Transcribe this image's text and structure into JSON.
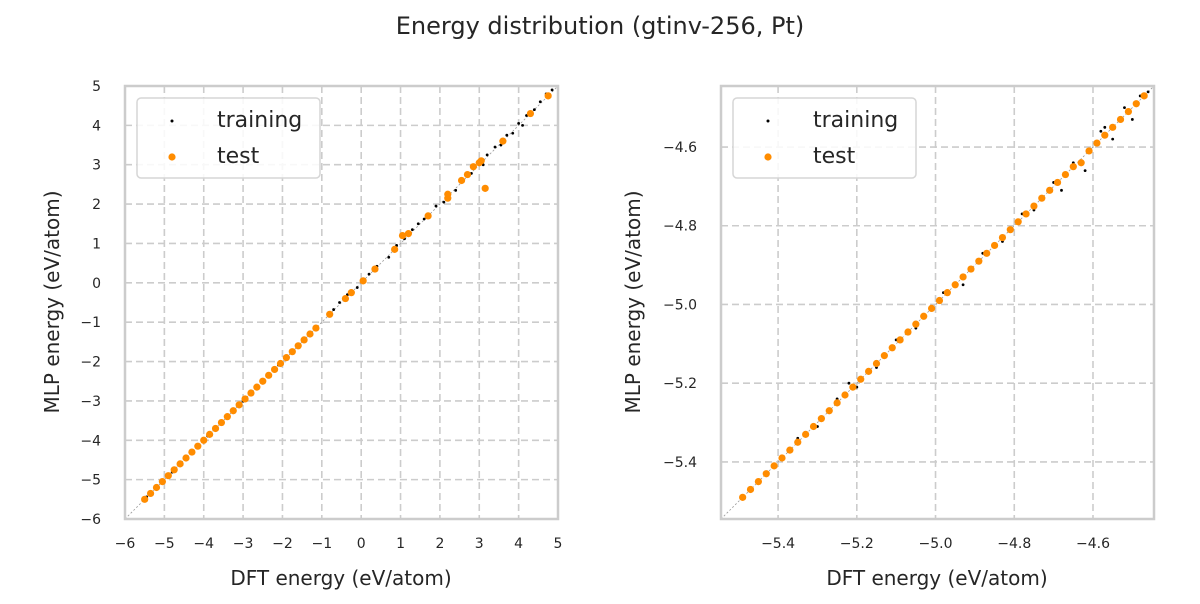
{
  "title": "Energy distribution (gtinv-256, Pt)",
  "colors": {
    "training": "#000000",
    "test": "#ff8c00",
    "grid": "#cccccc",
    "frame": "#cccccc",
    "diagonal": "#999999"
  },
  "chart_data": [
    {
      "type": "scatter",
      "xlabel": "DFT energy (eV/atom)",
      "ylabel": "MLP energy (eV/atom)",
      "xlim": [
        -6,
        5
      ],
      "ylim": [
        -6,
        5
      ],
      "xticks": [
        -6,
        -5,
        -4,
        -3,
        -2,
        -1,
        0,
        1,
        2,
        3,
        4,
        5
      ],
      "yticks": [
        -6,
        -5,
        -4,
        -3,
        -2,
        -1,
        0,
        1,
        2,
        3,
        4,
        5
      ],
      "tick_decimals": 0,
      "grid": true,
      "legend": "upper-left",
      "legend_labels": [
        "training",
        "test"
      ],
      "series": [
        {
          "name": "training",
          "points": [
            [
              -5.45,
              -5.44
            ],
            [
              -4.8,
              -4.81
            ],
            [
              -3.9,
              -3.89
            ],
            [
              -3.0,
              -3.01
            ],
            [
              -2.1,
              -2.09
            ],
            [
              -1.3,
              -1.31
            ],
            [
              -0.7,
              -0.68
            ],
            [
              -0.55,
              -0.5
            ],
            [
              -0.35,
              -0.3
            ],
            [
              -0.1,
              -0.12
            ],
            [
              0.2,
              0.22
            ],
            [
              0.4,
              0.42
            ],
            [
              0.7,
              0.65
            ],
            [
              0.9,
              0.95
            ],
            [
              1.1,
              1.12
            ],
            [
              1.3,
              1.35
            ],
            [
              1.45,
              1.5
            ],
            [
              1.6,
              1.62
            ],
            [
              1.75,
              1.7
            ],
            [
              1.9,
              1.95
            ],
            [
              2.1,
              2.05
            ],
            [
              2.2,
              2.25
            ],
            [
              2.4,
              2.35
            ],
            [
              2.55,
              2.6
            ],
            [
              2.7,
              2.75
            ],
            [
              2.8,
              2.78
            ],
            [
              2.95,
              3.05
            ],
            [
              3.1,
              3.0
            ],
            [
              3.2,
              3.25
            ],
            [
              3.4,
              3.45
            ],
            [
              3.55,
              3.5
            ],
            [
              3.7,
              3.75
            ],
            [
              3.85,
              3.8
            ],
            [
              4.0,
              4.05
            ],
            [
              4.1,
              4.0
            ],
            [
              4.2,
              4.25
            ],
            [
              4.4,
              4.4
            ],
            [
              4.55,
              4.6
            ],
            [
              4.7,
              4.8
            ],
            [
              4.85,
              4.9
            ]
          ]
        },
        {
          "name": "test",
          "points": [
            [
              -5.5,
              -5.5
            ],
            [
              -5.35,
              -5.35
            ],
            [
              -5.2,
              -5.2
            ],
            [
              -5.05,
              -5.05
            ],
            [
              -4.9,
              -4.9
            ],
            [
              -4.75,
              -4.75
            ],
            [
              -4.6,
              -4.6
            ],
            [
              -4.45,
              -4.45
            ],
            [
              -4.3,
              -4.3
            ],
            [
              -4.15,
              -4.15
            ],
            [
              -4.0,
              -4.0
            ],
            [
              -3.85,
              -3.85
            ],
            [
              -3.7,
              -3.7
            ],
            [
              -3.55,
              -3.55
            ],
            [
              -3.4,
              -3.4
            ],
            [
              -3.25,
              -3.25
            ],
            [
              -3.1,
              -3.1
            ],
            [
              -2.95,
              -2.95
            ],
            [
              -2.8,
              -2.8
            ],
            [
              -2.65,
              -2.65
            ],
            [
              -2.5,
              -2.5
            ],
            [
              -2.35,
              -2.35
            ],
            [
              -2.2,
              -2.2
            ],
            [
              -2.05,
              -2.05
            ],
            [
              -1.9,
              -1.9
            ],
            [
              -1.75,
              -1.75
            ],
            [
              -1.6,
              -1.6
            ],
            [
              -1.45,
              -1.45
            ],
            [
              -1.3,
              -1.3
            ],
            [
              -1.15,
              -1.15
            ],
            [
              -0.8,
              -0.8
            ],
            [
              -0.4,
              -0.4
            ],
            [
              -0.25,
              -0.25
            ],
            [
              0.05,
              0.05
            ],
            [
              0.35,
              0.35
            ],
            [
              0.85,
              0.85
            ],
            [
              1.05,
              1.2
            ],
            [
              1.2,
              1.25
            ],
            [
              1.7,
              1.7
            ],
            [
              2.2,
              2.25
            ],
            [
              2.2,
              2.15
            ],
            [
              2.55,
              2.6
            ],
            [
              2.7,
              2.75
            ],
            [
              2.85,
              2.95
            ],
            [
              3.0,
              3.05
            ],
            [
              3.05,
              3.1
            ],
            [
              3.15,
              2.4
            ],
            [
              3.6,
              3.6
            ],
            [
              4.3,
              4.3
            ],
            [
              4.75,
              4.75
            ]
          ]
        }
      ]
    },
    {
      "type": "scatter",
      "xlabel": "DFT energy (eV/atom)",
      "ylabel": "MLP energy (eV/atom)",
      "xlim": [
        -5.545,
        -4.445
      ],
      "ylim": [
        -5.545,
        -4.445
      ],
      "xticks": [
        -5.4,
        -5.2,
        -5.0,
        -4.8,
        -4.6
      ],
      "yticks": [
        -5.4,
        -5.2,
        -5.0,
        -4.8,
        -4.6
      ],
      "tick_decimals": 1,
      "grid": true,
      "legend": "upper-left",
      "legend_labels": [
        "training",
        "test"
      ],
      "series": [
        {
          "name": "training",
          "points": [
            [
              -5.45,
              -5.455
            ],
            [
              -5.35,
              -5.34
            ],
            [
              -5.3,
              -5.31
            ],
            [
              -5.25,
              -5.24
            ],
            [
              -5.2,
              -5.21
            ],
            [
              -5.22,
              -5.2
            ],
            [
              -5.15,
              -5.16
            ],
            [
              -5.1,
              -5.09
            ],
            [
              -5.05,
              -5.06
            ],
            [
              -4.98,
              -4.97
            ],
            [
              -4.93,
              -4.95
            ],
            [
              -4.88,
              -4.87
            ],
            [
              -4.83,
              -4.84
            ],
            [
              -4.78,
              -4.77
            ],
            [
              -4.75,
              -4.76
            ],
            [
              -4.7,
              -4.69
            ],
            [
              -4.68,
              -4.71
            ],
            [
              -4.65,
              -4.64
            ],
            [
              -4.62,
              -4.66
            ],
            [
              -4.58,
              -4.56
            ],
            [
              -4.57,
              -4.55
            ],
            [
              -4.55,
              -4.58
            ],
            [
              -4.52,
              -4.5
            ],
            [
              -4.5,
              -4.53
            ],
            [
              -4.48,
              -4.47
            ],
            [
              -4.46,
              -4.46
            ]
          ]
        },
        {
          "name": "test",
          "points": [
            [
              -5.49,
              -5.49
            ],
            [
              -5.47,
              -5.47
            ],
            [
              -5.45,
              -5.45
            ],
            [
              -5.43,
              -5.43
            ],
            [
              -5.41,
              -5.41
            ],
            [
              -5.39,
              -5.39
            ],
            [
              -5.37,
              -5.37
            ],
            [
              -5.35,
              -5.35
            ],
            [
              -5.33,
              -5.33
            ],
            [
              -5.31,
              -5.31
            ],
            [
              -5.29,
              -5.29
            ],
            [
              -5.27,
              -5.27
            ],
            [
              -5.25,
              -5.25
            ],
            [
              -5.23,
              -5.23
            ],
            [
              -5.21,
              -5.21
            ],
            [
              -5.19,
              -5.19
            ],
            [
              -5.17,
              -5.17
            ],
            [
              -5.15,
              -5.15
            ],
            [
              -5.13,
              -5.13
            ],
            [
              -5.11,
              -5.11
            ],
            [
              -5.09,
              -5.09
            ],
            [
              -5.07,
              -5.07
            ],
            [
              -5.05,
              -5.05
            ],
            [
              -5.03,
              -5.03
            ],
            [
              -5.01,
              -5.01
            ],
            [
              -4.99,
              -4.99
            ],
            [
              -4.97,
              -4.97
            ],
            [
              -4.95,
              -4.95
            ],
            [
              -4.93,
              -4.93
            ],
            [
              -4.91,
              -4.91
            ],
            [
              -4.89,
              -4.89
            ],
            [
              -4.87,
              -4.87
            ],
            [
              -4.85,
              -4.85
            ],
            [
              -4.83,
              -4.83
            ],
            [
              -4.81,
              -4.81
            ],
            [
              -4.79,
              -4.79
            ],
            [
              -4.77,
              -4.77
            ],
            [
              -4.75,
              -4.75
            ],
            [
              -4.73,
              -4.73
            ],
            [
              -4.71,
              -4.71
            ],
            [
              -4.69,
              -4.69
            ],
            [
              -4.67,
              -4.67
            ],
            [
              -4.65,
              -4.65
            ],
            [
              -4.63,
              -4.64
            ],
            [
              -4.61,
              -4.61
            ],
            [
              -4.59,
              -4.59
            ],
            [
              -4.57,
              -4.57
            ],
            [
              -4.55,
              -4.55
            ],
            [
              -4.53,
              -4.53
            ],
            [
              -4.51,
              -4.51
            ],
            [
              -4.49,
              -4.49
            ],
            [
              -4.47,
              -4.47
            ]
          ]
        }
      ]
    }
  ]
}
